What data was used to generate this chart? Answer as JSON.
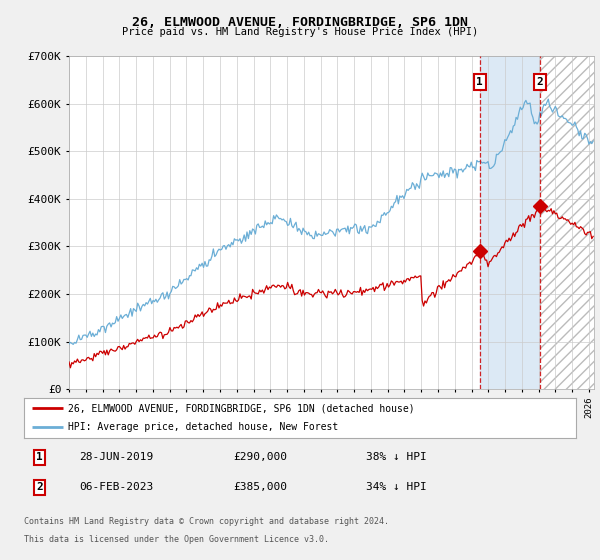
{
  "title": "26, ELMWOOD AVENUE, FORDINGBRIDGE, SP6 1DN",
  "subtitle": "Price paid vs. HM Land Registry's House Price Index (HPI)",
  "ylim": [
    0,
    700000
  ],
  "yticks": [
    0,
    100000,
    200000,
    300000,
    400000,
    500000,
    600000,
    700000
  ],
  "ytick_labels": [
    "£0",
    "£100K",
    "£200K",
    "£300K",
    "£400K",
    "£500K",
    "£600K",
    "£700K"
  ],
  "xlim_start": 1995.0,
  "xlim_end": 2026.3,
  "hpi_color": "#6baed6",
  "price_color": "#cc0000",
  "marker1_date": 2019.49,
  "marker1_price": 290000,
  "marker2_date": 2023.09,
  "marker2_price": 385000,
  "shade_color": "#dce9f5",
  "legend_entry1": "26, ELMWOOD AVENUE, FORDINGBRIDGE, SP6 1DN (detached house)",
  "legend_entry2": "HPI: Average price, detached house, New Forest",
  "annotation1_label": "1",
  "annotation1_date": "28-JUN-2019",
  "annotation1_price": "£290,000",
  "annotation1_pct": "38% ↓ HPI",
  "annotation2_label": "2",
  "annotation2_date": "06-FEB-2023",
  "annotation2_price": "£385,000",
  "annotation2_pct": "34% ↓ HPI",
  "footer1": "Contains HM Land Registry data © Crown copyright and database right 2024.",
  "footer2": "This data is licensed under the Open Government Licence v3.0.",
  "fig_bg": "#f0f0f0",
  "plot_bg": "#ffffff"
}
